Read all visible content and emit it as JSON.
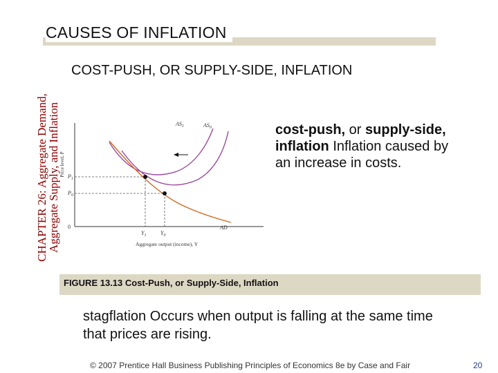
{
  "sidebar": {
    "line1": "CHAPTER 26:  Aggregate Demand,",
    "line2": "Aggregate Supply, and Inflation"
  },
  "header": {
    "title": "CAUSES OF INFLATION"
  },
  "subtitle": "COST-PUSH, OR SUPPLY-SIDE, INFLATION",
  "definition1": {
    "term": "cost-push, ",
    "connector": "or ",
    "term2": "supply-side, inflation",
    "text": "  Inflation caused by an increase in costs."
  },
  "figure": {
    "curve_as1": "AS",
    "curve_as1_sub": "1",
    "curve_as0": "AS",
    "curve_as0_sub": "0",
    "curve_ad": "AD",
    "price_axis_label": "Price level, P",
    "p1": "P",
    "p1_sub": "1",
    "p0": "P",
    "p0_sub": "0",
    "origin": "0",
    "y1": "Y",
    "y1_sub": "1",
    "y0": "Y",
    "y0_sub": "0",
    "x_axis_label": "Aggregate output (income), Y"
  },
  "caption": "FIGURE 13.13 Cost-Push, or Supply-Side, Inflation",
  "definition2": {
    "term": "stagflation",
    "text": " Occurs when output is falling at the same time that prices are rising."
  },
  "footer": {
    "text": "© 2007 Prentice Hall Business Publishing   Principles of Economics 8e by Case and Fair",
    "page": "20"
  },
  "colors": {
    "as_curves": "#9b4a9b",
    "ad_curve": "#d06a24",
    "header_bar": "#ddd8c4",
    "sidebar_text": "#8b0000"
  }
}
